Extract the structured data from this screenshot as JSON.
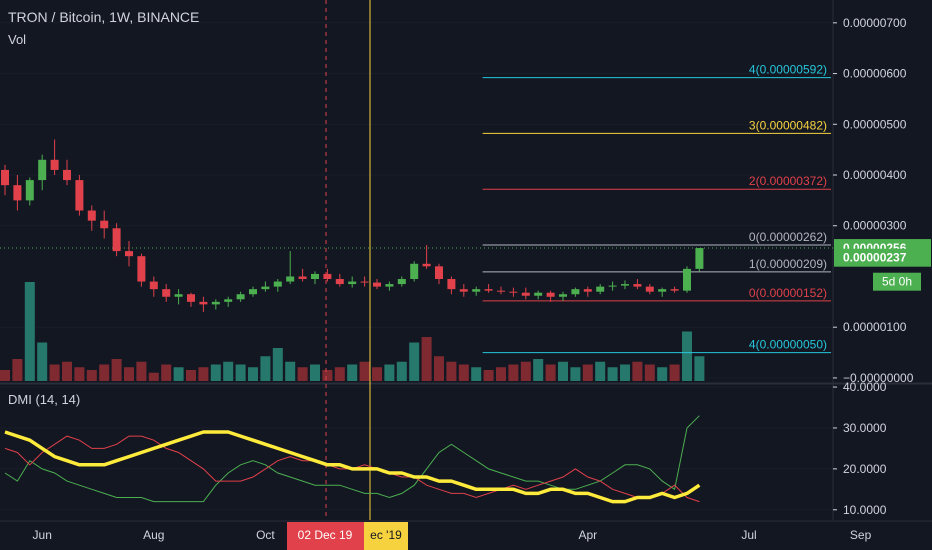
{
  "header": {
    "symbol": "TRON / Bitcoin, 1W, BINANCE",
    "volume_label": "Vol",
    "indicator_label": "DMI (14, 14)"
  },
  "colors": {
    "background": "#131722",
    "up": "#4caf50",
    "down": "#e0414a",
    "vol_up": "#26786d",
    "vol_down": "#7f2a31",
    "text": "#d1d4dc",
    "grid": "#363c4e",
    "crosshair_red": "#e0414a",
    "crosshair_yellow": "#f7d23f",
    "last_price": "#4caf50",
    "dmi_adx": "#ffeb3b",
    "dmi_plus": "#4caf50",
    "dmi_minus": "#e0414a"
  },
  "price_axis": {
    "ticks": [
      "0.00000700",
      "0.00000600",
      "0.00000500",
      "0.00000400",
      "0.00000300",
      "0.00000100",
      "−0.00000000"
    ],
    "tick_values": [
      700,
      600,
      500,
      400,
      300,
      100,
      0
    ],
    "badges": [
      {
        "value": 256,
        "text": "0.00000256",
        "color": "#4caf50"
      },
      {
        "value": 237,
        "text": "0.00000237",
        "color": "#4caf50"
      }
    ],
    "countdown": "5d 0h",
    "range": [
      -10,
      745
    ]
  },
  "dmi_axis": {
    "ticks": [
      "40.0000",
      "30.0000",
      "20.0000",
      "10.0000"
    ],
    "tick_values": [
      40,
      30,
      20,
      10
    ],
    "range": [
      7.5,
      40.5
    ]
  },
  "time_axis": {
    "labels": [
      {
        "text": "Jun",
        "week": 3
      },
      {
        "text": "Aug",
        "week": 12
      },
      {
        "text": "Oct",
        "week": 21
      },
      {
        "text": "Apr",
        "week": 47
      },
      {
        "text": "Jul",
        "week": 60
      },
      {
        "text": "Sep",
        "week": 69
      }
    ],
    "crosshair_date": "02 Dec 19",
    "crosshair_date_partial": "ec '19"
  },
  "fib_levels": [
    {
      "label": "4(0.00000592)",
      "value": 592,
      "color": "#26c6da",
      "from_week": 39
    },
    {
      "label": "3(0.00000482)",
      "value": 482,
      "color": "#f7d23f",
      "from_week": 39
    },
    {
      "label": "2(0.00000372)",
      "value": 372,
      "color": "#e0414a",
      "from_week": 39
    },
    {
      "label": "0(0.00000262)",
      "value": 262,
      "color": "#b2b5be",
      "from_week": 39
    },
    {
      "label": "1(0.00000209)",
      "value": 209,
      "color": "#b2b5be",
      "from_week": 39
    },
    {
      "label": "0(0.00000152)",
      "value": 152,
      "color": "#e0414a",
      "from_week": 39
    },
    {
      "label": "4(0.00000050)",
      "value": 50,
      "color": "#26c6da",
      "from_week": 39
    }
  ],
  "chart_data": {
    "type": "candlestick",
    "title": "TRON / Bitcoin, 1W, BINANCE",
    "unit": "1e-8 BTC",
    "ohlc": [
      [
        410,
        420,
        360,
        380
      ],
      [
        380,
        400,
        330,
        350
      ],
      [
        350,
        395,
        340,
        390
      ],
      [
        390,
        440,
        370,
        430
      ],
      [
        430,
        470,
        400,
        410
      ],
      [
        410,
        430,
        380,
        390
      ],
      [
        390,
        400,
        320,
        330
      ],
      [
        330,
        340,
        290,
        310
      ],
      [
        310,
        330,
        275,
        295
      ],
      [
        295,
        305,
        240,
        250
      ],
      [
        250,
        270,
        220,
        240
      ],
      [
        240,
        245,
        180,
        190
      ],
      [
        190,
        200,
        160,
        175
      ],
      [
        175,
        185,
        150,
        160
      ],
      [
        160,
        175,
        145,
        165
      ],
      [
        165,
        168,
        140,
        150
      ],
      [
        150,
        160,
        130,
        145
      ],
      [
        145,
        155,
        135,
        150
      ],
      [
        150,
        160,
        140,
        155
      ],
      [
        155,
        170,
        150,
        165
      ],
      [
        165,
        180,
        160,
        175
      ],
      [
        175,
        190,
        170,
        180
      ],
      [
        180,
        195,
        170,
        190
      ],
      [
        190,
        250,
        185,
        200
      ],
      [
        200,
        215,
        190,
        195
      ],
      [
        195,
        210,
        185,
        205
      ],
      [
        205,
        215,
        190,
        195
      ],
      [
        195,
        205,
        180,
        185
      ],
      [
        185,
        200,
        178,
        190
      ],
      [
        190,
        200,
        180,
        188
      ],
      [
        188,
        195,
        175,
        180
      ],
      [
        180,
        190,
        172,
        185
      ],
      [
        185,
        200,
        180,
        195
      ],
      [
        195,
        230,
        190,
        225
      ],
      [
        225,
        262,
        215,
        220
      ],
      [
        220,
        225,
        185,
        195
      ],
      [
        195,
        200,
        165,
        175
      ],
      [
        175,
        185,
        160,
        170
      ],
      [
        170,
        180,
        162,
        175
      ],
      [
        175,
        185,
        168,
        172
      ],
      [
        172,
        180,
        165,
        170
      ],
      [
        170,
        178,
        160,
        168
      ],
      [
        168,
        178,
        155,
        162
      ],
      [
        162,
        172,
        155,
        168
      ],
      [
        168,
        172,
        150,
        160
      ],
      [
        160,
        170,
        152,
        165
      ],
      [
        165,
        178,
        160,
        175
      ],
      [
        175,
        180,
        160,
        170
      ],
      [
        170,
        185,
        165,
        180
      ],
      [
        180,
        190,
        172,
        182
      ],
      [
        182,
        192,
        175,
        185
      ],
      [
        185,
        195,
        175,
        180
      ],
      [
        180,
        185,
        165,
        170
      ],
      [
        170,
        178,
        160,
        175
      ],
      [
        175,
        180,
        168,
        172
      ],
      [
        172,
        220,
        168,
        215
      ],
      [
        215,
        256,
        210,
        256
      ]
    ],
    "volume": [
      20,
      40,
      180,
      70,
      30,
      35,
      25,
      20,
      30,
      40,
      25,
      35,
      15,
      30,
      25,
      20,
      25,
      30,
      35,
      30,
      25,
      45,
      60,
      35,
      25,
      30,
      20,
      25,
      30,
      35,
      25,
      30,
      35,
      70,
      80,
      45,
      35,
      30,
      25,
      20,
      25,
      30,
      35,
      40,
      30,
      35,
      25,
      30,
      35,
      25,
      30,
      35,
      30,
      25,
      30,
      90,
      45
    ],
    "dmi": {
      "adx": [
        29,
        28,
        27,
        25,
        23,
        22,
        21,
        21,
        21,
        22,
        23,
        24,
        25,
        26,
        27,
        28,
        29,
        29,
        29,
        28,
        27,
        26,
        25,
        24,
        23,
        22,
        21,
        21,
        20,
        20,
        20,
        19,
        19,
        18,
        18,
        17,
        17,
        16,
        15,
        15,
        15,
        15,
        14,
        14,
        15,
        15,
        14,
        14,
        13,
        12,
        12,
        13,
        13,
        14,
        13,
        14,
        16
      ],
      "plus": [
        19,
        17,
        22,
        20,
        19,
        17,
        16,
        15,
        14,
        13,
        13,
        13,
        12,
        12,
        12,
        12,
        12,
        16,
        19,
        21,
        22,
        21,
        19,
        18,
        17,
        16,
        16,
        16,
        15,
        14,
        14,
        13,
        14,
        16,
        20,
        24,
        26,
        24,
        22,
        20,
        19,
        18,
        17,
        17,
        16,
        15,
        15,
        16,
        17,
        19,
        21,
        21,
        20,
        17,
        15,
        30,
        33
      ],
      "minus": [
        25,
        24,
        21,
        24,
        26,
        28,
        27,
        25,
        25,
        26,
        28,
        28,
        27,
        25,
        24,
        22,
        20,
        17,
        17,
        17,
        18,
        20,
        22,
        23,
        22,
        22,
        21,
        20,
        20,
        21,
        20,
        19,
        18,
        18,
        16,
        15,
        14,
        14,
        13,
        14,
        15,
        16,
        15,
        16,
        17,
        18,
        20,
        18,
        17,
        15,
        14,
        13,
        13,
        14,
        16,
        13,
        12
      ]
    },
    "x_unit": "week index",
    "ylim": [
      0,
      700
    ]
  }
}
